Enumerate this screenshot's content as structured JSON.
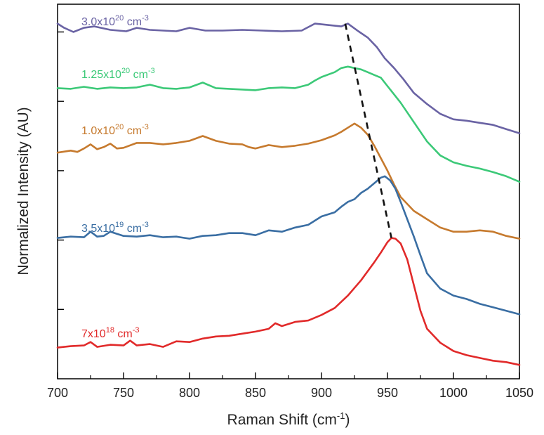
{
  "chart_data": {
    "type": "line",
    "xlabel": "Raman Shift (cm",
    "xlabel_sup": "-1",
    "xlabel_end": ")",
    "ylabel": "Normalized Intensity (AU)",
    "xlim": [
      700,
      1050
    ],
    "ylim": [
      0,
      5.4
    ],
    "x_ticks": [
      700,
      750,
      800,
      850,
      900,
      950,
      1000,
      1050
    ],
    "grid": false,
    "y_tick_labels_shown": false,
    "series": [
      {
        "name_base": "3.0x10",
        "name_exp": "20",
        "name_unit": " cm",
        "name_unit_exp": "-3",
        "color": "#6a63a4",
        "x": [
          700,
          705,
          712,
          720,
          728,
          740,
          752,
          760,
          770,
          780,
          790,
          800,
          812,
          825,
          840,
          855,
          870,
          885,
          895,
          905,
          915,
          920,
          928,
          935,
          942,
          948,
          955,
          962,
          970,
          980,
          990,
          1000,
          1010,
          1020,
          1030,
          1040,
          1050
        ],
        "y": [
          5.12,
          5.06,
          5.0,
          5.06,
          5.08,
          5.03,
          5.01,
          5.06,
          5.03,
          5.02,
          5.01,
          5.06,
          5.02,
          5.02,
          5.03,
          5.02,
          5.01,
          5.02,
          5.12,
          5.1,
          5.08,
          5.12,
          5.01,
          4.92,
          4.78,
          4.62,
          4.48,
          4.32,
          4.12,
          3.96,
          3.82,
          3.74,
          3.72,
          3.69,
          3.66,
          3.6,
          3.54
        ]
      },
      {
        "name_base": "1.25x10",
        "name_exp": "20",
        "name_unit": " cm",
        "name_unit_exp": "-3",
        "color": "#3cc978",
        "x": [
          700,
          710,
          720,
          730,
          740,
          750,
          760,
          770,
          780,
          790,
          800,
          810,
          820,
          830,
          840,
          850,
          860,
          870,
          880,
          890,
          895,
          900,
          910,
          915,
          920,
          925,
          930,
          935,
          940,
          945,
          950,
          955,
          960,
          970,
          980,
          990,
          1000,
          1010,
          1020,
          1030,
          1040,
          1050
        ],
        "y": [
          4.19,
          4.18,
          4.21,
          4.18,
          4.2,
          4.19,
          4.2,
          4.24,
          4.19,
          4.18,
          4.2,
          4.27,
          4.19,
          4.18,
          4.17,
          4.16,
          4.19,
          4.2,
          4.19,
          4.24,
          4.3,
          4.35,
          4.42,
          4.48,
          4.5,
          4.48,
          4.46,
          4.42,
          4.38,
          4.34,
          4.22,
          4.1,
          3.98,
          3.7,
          3.42,
          3.22,
          3.12,
          3.07,
          3.03,
          2.98,
          2.92,
          2.84
        ]
      },
      {
        "name_base": "1.0x10",
        "name_exp": "20",
        "name_unit": " cm",
        "name_unit_exp": "-3",
        "color": "#c67a2e",
        "x": [
          700,
          710,
          715,
          720,
          725,
          730,
          735,
          740,
          745,
          750,
          760,
          770,
          780,
          790,
          800,
          810,
          820,
          830,
          840,
          845,
          850,
          860,
          870,
          880,
          890,
          900,
          910,
          915,
          920,
          925,
          930,
          935,
          940,
          945,
          950,
          955,
          960,
          970,
          980,
          990,
          1000,
          1010,
          1020,
          1030,
          1040,
          1050
        ],
        "y": [
          3.26,
          3.29,
          3.27,
          3.32,
          3.38,
          3.31,
          3.34,
          3.39,
          3.32,
          3.33,
          3.4,
          3.4,
          3.38,
          3.4,
          3.43,
          3.5,
          3.43,
          3.39,
          3.38,
          3.34,
          3.32,
          3.37,
          3.34,
          3.36,
          3.39,
          3.44,
          3.51,
          3.56,
          3.62,
          3.68,
          3.62,
          3.52,
          3.36,
          3.18,
          3.0,
          2.8,
          2.62,
          2.42,
          2.3,
          2.18,
          2.12,
          2.12,
          2.14,
          2.12,
          2.06,
          2.02
        ]
      },
      {
        "name_base": "3.5x10",
        "name_exp": "19",
        "name_unit": " cm",
        "name_unit_exp": "-3",
        "color": "#3a6ea3",
        "x": [
          700,
          710,
          720,
          725,
          730,
          735,
          740,
          750,
          760,
          770,
          780,
          790,
          800,
          810,
          820,
          830,
          840,
          850,
          860,
          870,
          880,
          890,
          900,
          910,
          915,
          920,
          925,
          930,
          935,
          940,
          945,
          948,
          952,
          956,
          960,
          965,
          970,
          975,
          980,
          990,
          1000,
          1010,
          1020,
          1030,
          1040,
          1050
        ],
        "y": [
          2.03,
          2.05,
          2.04,
          2.12,
          2.05,
          2.06,
          2.12,
          2.06,
          2.05,
          2.07,
          2.04,
          2.05,
          2.02,
          2.06,
          2.07,
          2.1,
          2.1,
          2.07,
          2.14,
          2.12,
          2.18,
          2.22,
          2.34,
          2.4,
          2.48,
          2.55,
          2.59,
          2.68,
          2.74,
          2.82,
          2.9,
          2.92,
          2.86,
          2.74,
          2.55,
          2.3,
          2.05,
          1.78,
          1.52,
          1.3,
          1.2,
          1.15,
          1.08,
          1.03,
          0.98,
          0.93
        ]
      },
      {
        "name_base": "7x10",
        "name_exp": "18",
        "name_unit": " cm",
        "name_unit_exp": "-3",
        "color": "#e12a2a",
        "x": [
          700,
          710,
          720,
          725,
          730,
          740,
          750,
          755,
          760,
          770,
          780,
          790,
          800,
          810,
          820,
          830,
          840,
          850,
          860,
          865,
          870,
          880,
          890,
          900,
          910,
          920,
          930,
          940,
          945,
          950,
          953,
          956,
          960,
          965,
          970,
          975,
          980,
          990,
          1000,
          1010,
          1020,
          1030,
          1040,
          1050
        ],
        "y": [
          0.45,
          0.47,
          0.48,
          0.53,
          0.46,
          0.49,
          0.48,
          0.55,
          0.48,
          0.5,
          0.46,
          0.54,
          0.53,
          0.58,
          0.61,
          0.62,
          0.65,
          0.68,
          0.72,
          0.8,
          0.76,
          0.82,
          0.84,
          0.92,
          1.02,
          1.2,
          1.42,
          1.68,
          1.82,
          1.97,
          2.03,
          2.02,
          1.95,
          1.72,
          1.35,
          0.98,
          0.72,
          0.52,
          0.4,
          0.34,
          0.3,
          0.26,
          0.24,
          0.2
        ]
      }
    ],
    "annotation": {
      "type": "dashed-line",
      "color": "#111111",
      "points": [
        [
          918,
          5.12
        ],
        [
          953,
          2.03
        ]
      ]
    }
  }
}
